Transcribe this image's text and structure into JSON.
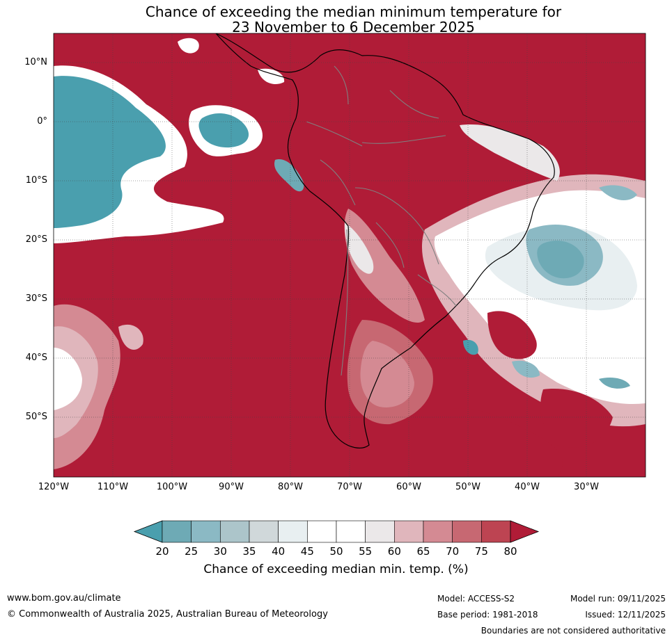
{
  "title_line1": "Chance of exceeding the median minimum temperature for",
  "title_line2": "23 November to 6 December 2025",
  "lat_labels": [
    "10°N",
    "0°",
    "10°S",
    "20°S",
    "30°S",
    "40°S",
    "50°S"
  ],
  "lat_values": [
    10,
    0,
    -10,
    -20,
    -30,
    -40,
    -50
  ],
  "lon_labels": [
    "120°W",
    "110°W",
    "100°W",
    "90°W",
    "80°W",
    "70°W",
    "60°W",
    "50°W",
    "40°W",
    "30°W"
  ],
  "lon_values": [
    -120,
    -110,
    -100,
    -90,
    -80,
    -70,
    -60,
    -50,
    -40,
    -30
  ],
  "map_extent": {
    "lon": [
      -120,
      -20
    ],
    "lat": [
      -60,
      15
    ]
  },
  "colorbar": {
    "ticks": [
      "20",
      "25",
      "30",
      "35",
      "40",
      "45",
      "50",
      "55",
      "60",
      "65",
      "70",
      "75",
      "80"
    ],
    "colors": [
      "#4a9fae",
      "#6eaab5",
      "#8bb9c4",
      "#acc5ca",
      "#d0d8da",
      "#e8eff1",
      "#ffffff",
      "#ffffff",
      "#ebe8e9",
      "#e0b6bc",
      "#d48a93",
      "#c76872",
      "#bd4452",
      "#b01c37"
    ],
    "label": "Chance of exceeding median min. temp. (%)"
  },
  "colors": {
    "high": "#b01c37",
    "mid_high": "#c76872",
    "light_high": "#e0b6bc",
    "neutral": "#ffffff",
    "low": "#4a9fae",
    "low_mid": "#8bb9c4"
  },
  "footer": {
    "website": "www.bom.gov.au/climate",
    "copyright": "© Commonwealth of Australia 2025, Australian Bureau of Meteorology",
    "model": "Model: ACCESS-S2",
    "base_period": "Base period: 1981-2018",
    "model_run": "Model run: 09/11/2025",
    "issued": "Issued: 12/11/2025",
    "boundaries": "Boundaries are not considered authoritative"
  }
}
